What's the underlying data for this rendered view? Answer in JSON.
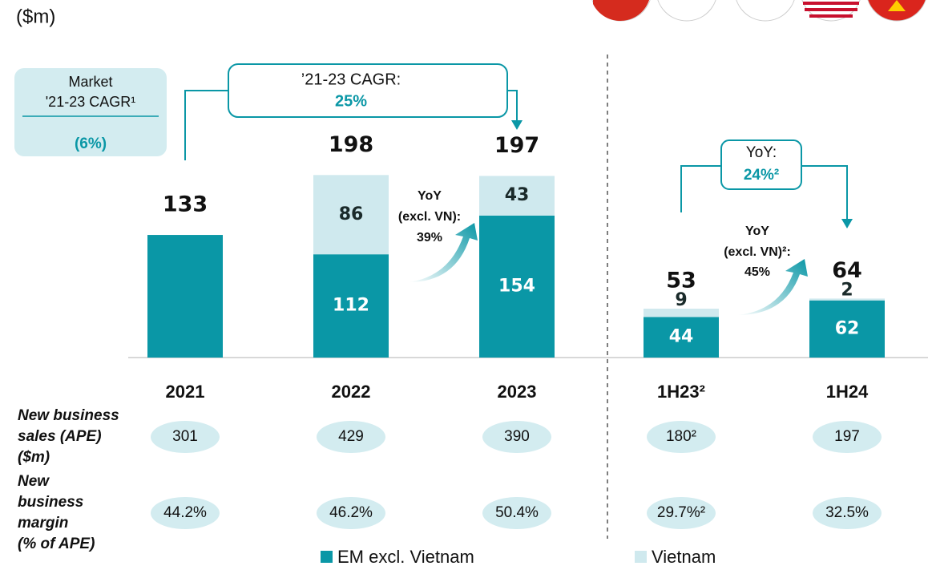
{
  "unit_label": "($m)",
  "chart_data": {
    "type": "bar",
    "stacked": true,
    "categories": [
      "2021",
      "2022",
      "2023",
      "1H23²",
      "1H24"
    ],
    "series": [
      {
        "name": "EM excl. Vietnam",
        "color": "#0a97a6",
        "values": [
          133,
          112,
          154,
          44,
          62
        ]
      },
      {
        "name": "Vietnam",
        "color": "#cfe9ee",
        "values": [
          null,
          86,
          43,
          9,
          2
        ]
      }
    ],
    "totals": [
      133,
      198,
      197,
      53,
      64
    ],
    "annotations": {
      "market_box": [
        "Market",
        "'21-23 CAGR¹",
        "(6%)"
      ],
      "cagr_box": [
        "’21-23 CAGR:",
        "25%"
      ],
      "yoy_box": [
        "YoY:",
        "24%²"
      ],
      "yoy_full_year": [
        "YoY",
        "(excl. VN):",
        "39%"
      ],
      "yoy_half_year": [
        "YoY",
        "(excl. VN)²:",
        "45%"
      ]
    }
  },
  "table": {
    "rows": [
      {
        "label": [
          "New business",
          "sales (APE)",
          "($m)"
        ],
        "values": [
          301,
          429,
          390,
          180,
          197
        ],
        "value_labels": [
          "301",
          "429",
          "390",
          "180²",
          "197"
        ]
      },
      {
        "label": [
          "New",
          "business",
          "margin",
          "(% of APE)"
        ],
        "values": [
          44.2,
          46.2,
          50.4,
          29.7,
          32.5
        ],
        "value_labels": [
          "44.2%",
          "46.2%",
          "50.4%",
          "29.7%²",
          "32.5%"
        ]
      }
    ]
  }
}
